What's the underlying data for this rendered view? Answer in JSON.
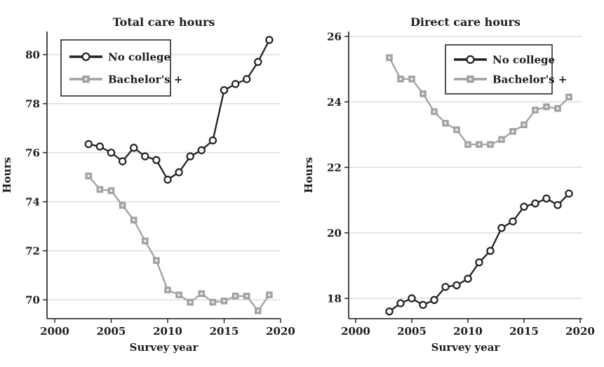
{
  "figure": {
    "background": "#ffffff",
    "text_color": "#1b1b24"
  },
  "colors": {
    "gridline": "#d8d8d8",
    "axis": "#1a1a1a",
    "legend_border": "#1a1a1a",
    "no_college": "#212121",
    "bachelors": "#a1a1a1",
    "marker_fill": "#ffffff"
  },
  "chart_data": [
    {
      "type": "line",
      "title": "Total care hours",
      "xlabel": "Survey year",
      "ylabel": "Hours",
      "x": [
        2003,
        2004,
        2005,
        2006,
        2007,
        2008,
        2009,
        2010,
        2011,
        2012,
        2013,
        2014,
        2015,
        2016,
        2017,
        2018,
        2019
      ],
      "series": [
        {
          "name": "No college",
          "marker": "circle",
          "color": "#212121",
          "values": [
            76.35,
            76.25,
            76.0,
            75.65,
            76.2,
            75.85,
            75.7,
            74.9,
            75.2,
            75.85,
            76.1,
            76.5,
            78.55,
            78.8,
            79.0,
            79.7,
            80.6
          ]
        },
        {
          "name": "Bachelor's +",
          "marker": "square",
          "color": "#a1a1a1",
          "values": [
            75.05,
            74.5,
            74.45,
            73.85,
            73.25,
            72.4,
            71.6,
            70.4,
            70.2,
            69.9,
            70.25,
            69.9,
            69.95,
            70.15,
            70.15,
            69.55,
            70.2
          ]
        }
      ],
      "xlim": [
        2000,
        2020
      ],
      "ylim": [
        69.25,
        80.95
      ],
      "xticks": [
        2000,
        2005,
        2010,
        2015,
        2020
      ],
      "yticks": [
        70,
        72,
        74,
        76,
        78,
        80
      ],
      "grid": "horizontal",
      "legend_position": "top-left"
    },
    {
      "type": "line",
      "title": "Direct care hours",
      "xlabel": "Survey year",
      "ylabel": "Hours",
      "x": [
        2003,
        2004,
        2005,
        2006,
        2007,
        2008,
        2009,
        2010,
        2011,
        2012,
        2013,
        2014,
        2015,
        2016,
        2017,
        2018,
        2019
      ],
      "series": [
        {
          "name": "No college",
          "marker": "circle",
          "color": "#212121",
          "values": [
            17.6,
            17.85,
            18.0,
            17.8,
            17.95,
            18.35,
            18.4,
            18.6,
            19.1,
            19.45,
            20.15,
            20.35,
            20.8,
            20.9,
            21.05,
            20.85,
            21.2
          ]
        },
        {
          "name": "Bachelor's +",
          "marker": "square",
          "color": "#a1a1a1",
          "values": [
            25.35,
            24.7,
            24.7,
            24.25,
            23.7,
            23.35,
            23.15,
            22.7,
            22.7,
            22.7,
            22.85,
            23.1,
            23.3,
            23.75,
            23.85,
            23.8,
            24.15
          ]
        }
      ],
      "xlim": [
        2000,
        2020
      ],
      "ylim": [
        17.35,
        26.15
      ],
      "xticks": [
        2000,
        2005,
        2010,
        2015,
        2020
      ],
      "yticks": [
        18,
        20,
        22,
        24,
        26
      ],
      "grid": "horizontal",
      "legend_position": "top-right"
    }
  ]
}
